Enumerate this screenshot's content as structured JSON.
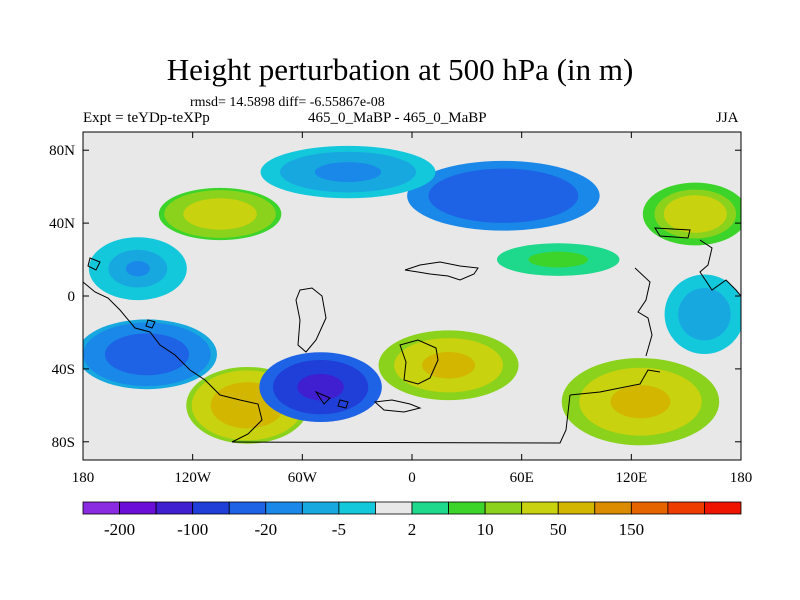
{
  "chart_data": {
    "type": "heatmap",
    "title": "Height perturbation at 500 hPa (in m)",
    "stats": "rmsd= 14.5898 diff= -6.55867e-08",
    "experiment": "Expt = teYDp-teXPp",
    "subtitle": "465_0_MaBP - 465_0_MaBP",
    "season": "JJA",
    "x_ticks": [
      "180",
      "120W",
      "60W",
      "0",
      "60E",
      "120E",
      "180"
    ],
    "x_tick_values": [
      -180,
      -120,
      -60,
      0,
      60,
      120,
      180
    ],
    "y_ticks": [
      "80N",
      "40N",
      "0",
      "40S",
      "80S"
    ],
    "y_tick_values": [
      80,
      40,
      0,
      -40,
      -80
    ],
    "xlim": [
      -180,
      180
    ],
    "ylim": [
      -90,
      90
    ],
    "colorbar": {
      "colors": [
        "#8a2be2",
        "#6a0ed8",
        "#3f1fd0",
        "#1f3fd8",
        "#1e62e6",
        "#1a88e8",
        "#18a8e0",
        "#14c8dc",
        "#e8e8e8",
        "#1ed88c",
        "#3cd42a",
        "#8ad21c",
        "#c8d20e",
        "#d2b600",
        "#dc8c00",
        "#e66400",
        "#ee3c00",
        "#ee1400"
      ],
      "labels": [
        "-200",
        "-100",
        "-20",
        "-5",
        "2",
        "10",
        "50",
        "150"
      ],
      "label_boundaries": [
        1,
        3,
        5,
        7,
        9,
        11,
        13,
        15
      ]
    },
    "field_anomalies": [
      {
        "lon": -145,
        "lat": -32,
        "r": 2,
        "value": -35,
        "rx": 40,
        "ry": 20
      },
      {
        "lon": -90,
        "lat": -60,
        "r": 3,
        "value": 75,
        "rx": 35,
        "ry": 22
      },
      {
        "lon": -50,
        "lat": -50,
        "r": 4,
        "value": -110,
        "rx": 35,
        "ry": 20
      },
      {
        "lon": 20,
        "lat": -38,
        "r": 5,
        "value": 55,
        "rx": 40,
        "ry": 20
      },
      {
        "lon": 125,
        "lat": -58,
        "r": 6,
        "value": 60,
        "rx": 45,
        "ry": 25
      },
      {
        "lon": 50,
        "lat": 55,
        "r": 7,
        "value": -45,
        "rx": 55,
        "ry": 20
      },
      {
        "lon": -105,
        "lat": 45,
        "r": 8,
        "value": 35,
        "rx": 35,
        "ry": 15
      },
      {
        "lon": 155,
        "lat": 45,
        "r": 9,
        "value": 30,
        "rx": 30,
        "ry": 18
      },
      {
        "lon": -35,
        "lat": 68,
        "r": 10,
        "value": -12,
        "rx": 50,
        "ry": 15
      },
      {
        "lon": -150,
        "lat": 15,
        "r": 11,
        "value": -10,
        "rx": 28,
        "ry": 18
      },
      {
        "lon": 80,
        "lat": 20,
        "r": 12,
        "value": 6,
        "rx": 45,
        "ry": 12
      },
      {
        "lon": 160,
        "lat": -10,
        "r": 13,
        "value": -8,
        "rx": 25,
        "ry": 25
      }
    ]
  }
}
